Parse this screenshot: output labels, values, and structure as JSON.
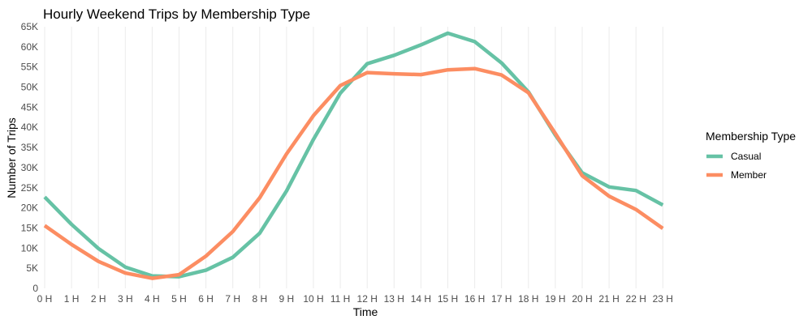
{
  "chart_data": {
    "type": "line",
    "title": "Hourly Weekend Trips by Membership Type",
    "xlabel": "Time",
    "ylabel": "Number of Trips",
    "x": [
      "0 H",
      "1 H",
      "2 H",
      "3 H",
      "4 H",
      "5 H",
      "6 H",
      "7 H",
      "8 H",
      "9 H",
      "10 H",
      "11 H",
      "12 H",
      "13 H",
      "14 H",
      "15 H",
      "16 H",
      "17 H",
      "18 H",
      "19 H",
      "20 H",
      "21 H",
      "22 H",
      "23 H"
    ],
    "yticks": [
      "0",
      "5K",
      "10K",
      "15K",
      "20K",
      "25K",
      "30K",
      "35K",
      "40K",
      "45K",
      "50K",
      "55K",
      "60K",
      "65K"
    ],
    "ylim": [
      0,
      65000
    ],
    "grid": "vertical",
    "legend": {
      "title": "Membership Type",
      "position": "right"
    },
    "series": [
      {
        "name": "Casual",
        "color": "#66c2a5",
        "values": [
          22700,
          15900,
          9900,
          5300,
          3100,
          2900,
          4500,
          7700,
          13700,
          24200,
          37000,
          48500,
          55800,
          57900,
          60500,
          63400,
          61300,
          56000,
          48800,
          38100,
          28700,
          25200,
          24300,
          20700
        ]
      },
      {
        "name": "Member",
        "color": "#fc8d62",
        "values": [
          15600,
          10900,
          6700,
          3800,
          2500,
          3400,
          8000,
          14100,
          22500,
          33400,
          42900,
          50400,
          53600,
          53300,
          53100,
          54300,
          54600,
          53000,
          48600,
          38500,
          28000,
          22900,
          19600,
          14900
        ]
      }
    ]
  }
}
